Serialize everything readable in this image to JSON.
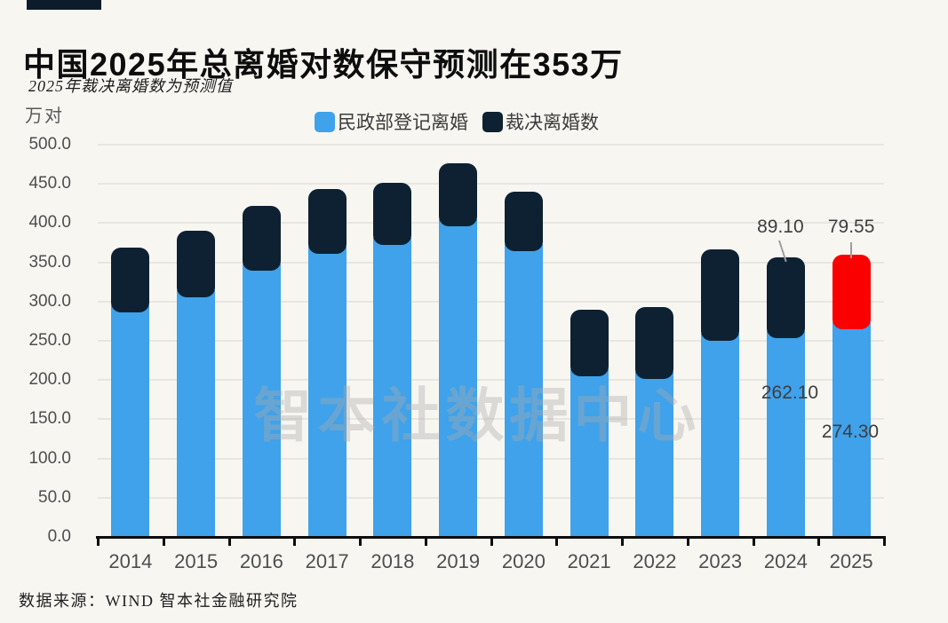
{
  "header": {
    "title": "中国2025年总离婚对数保守预测在353万",
    "subtitle": "2025年裁决离婚数为预测值"
  },
  "watermark": {
    "text": "智本社数据中心"
  },
  "footer": {
    "source": "数据来源：WIND 智本社金融研究院"
  },
  "colors": {
    "background": "#f8f6f1",
    "bar_blue": "#3fa2ea",
    "bar_navy": "#0e2132",
    "bar_red": "#fb0000",
    "axis": "#0d0d0d",
    "gridline": "#e9e6e0"
  },
  "chart_data": {
    "type": "bar",
    "stacked": true,
    "title": "中国2025年总离婚对数保守预测在353万",
    "subtitle": "2025年裁决离婚数为预测值",
    "xlabel": "",
    "ylabel": "万对",
    "ylim": [
      0,
      500
    ],
    "ytick_step": 50,
    "ytick_format_decimals": 1,
    "grid": true,
    "legend_position": "top-center",
    "categories": [
      "2014",
      "2015",
      "2016",
      "2017",
      "2018",
      "2019",
      "2020",
      "2021",
      "2022",
      "2023",
      "2024",
      "2025"
    ],
    "series": [
      {
        "name": "民政部登记离婚",
        "color": "#3fa2ea",
        "values": [
          295.7,
          314.9,
          348.6,
          370.4,
          381.2,
          404.7,
          373.3,
          213.9,
          210.0,
          259.3,
          262.1,
          274.3
        ]
      },
      {
        "name": "裁决离婚数",
        "color": "#0e2132",
        "values": [
          68.0,
          69.2,
          67.2,
          67.0,
          64.9,
          65.4,
          60.6,
          70.0,
          77.9,
          101.2,
          89.1,
          79.55
        ],
        "highlight_category": "2025",
        "highlight_color": "#fb0000"
      }
    ],
    "annotations": [
      {
        "label": "89.10",
        "category": "2024",
        "series": "裁决离婚数"
      },
      {
        "label": "79.55",
        "category": "2025",
        "series": "裁决离婚数"
      },
      {
        "label": "262.10",
        "category": "2024",
        "series": "民政部登记离婚"
      },
      {
        "label": "274.30",
        "category": "2025",
        "series": "民政部登记离婚"
      }
    ]
  }
}
